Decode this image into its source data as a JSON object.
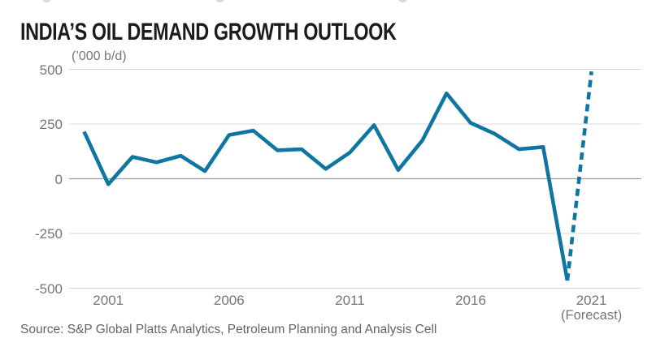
{
  "page": {
    "title": "INDIA’S OIL DEMAND GROWTH OUTLOOK",
    "source": "Source: S&P Global Platts Analytics, Petroleum Planning and Analysis Cell"
  },
  "chart_data": {
    "type": "line",
    "title": "INDIA’S OIL DEMAND GROWTH OUTLOOK",
    "unit_label": "(’000 b/d)",
    "ylabel": "'000 b/d",
    "ylim": [
      -500,
      500
    ],
    "grid": "horizontal-only",
    "legend": "none",
    "y_ticks": [
      {
        "value": 500,
        "label": "500"
      },
      {
        "value": 250,
        "label": "250"
      },
      {
        "value": 0,
        "label": "0"
      },
      {
        "value": -250,
        "label": "-250"
      },
      {
        "value": -500,
        "label": "-500"
      }
    ],
    "x_ticks": [
      {
        "year": 2001,
        "label": "2001"
      },
      {
        "year": 2006,
        "label": "2006"
      },
      {
        "year": 2011,
        "label": "2011"
      },
      {
        "year": 2016,
        "label": "2016"
      },
      {
        "year": 2021,
        "label": "2021",
        "sublabel": "(Forecast)"
      }
    ],
    "series": [
      {
        "name": "historical",
        "style": "solid",
        "years": [
          2000,
          2001,
          2002,
          2003,
          2004,
          2005,
          2006,
          2007,
          2008,
          2009,
          2010,
          2011,
          2012,
          2013,
          2014,
          2015,
          2016,
          2017,
          2018,
          2019,
          2020
        ],
        "values": [
          215,
          -25,
          100,
          75,
          105,
          35,
          200,
          220,
          130,
          135,
          45,
          120,
          245,
          40,
          175,
          390,
          255,
          205,
          135,
          145,
          -465
        ]
      },
      {
        "name": "forecast",
        "style": "dashed",
        "years": [
          2020,
          2021
        ],
        "values": [
          -465,
          490
        ]
      }
    ],
    "colors": {
      "line": "#0e76a1",
      "grid": "#d8d8d8",
      "zero_line": "#9c9c9c",
      "tick_text": "#757575",
      "title_text": "#1b1b1b",
      "source_text": "#646464"
    }
  }
}
